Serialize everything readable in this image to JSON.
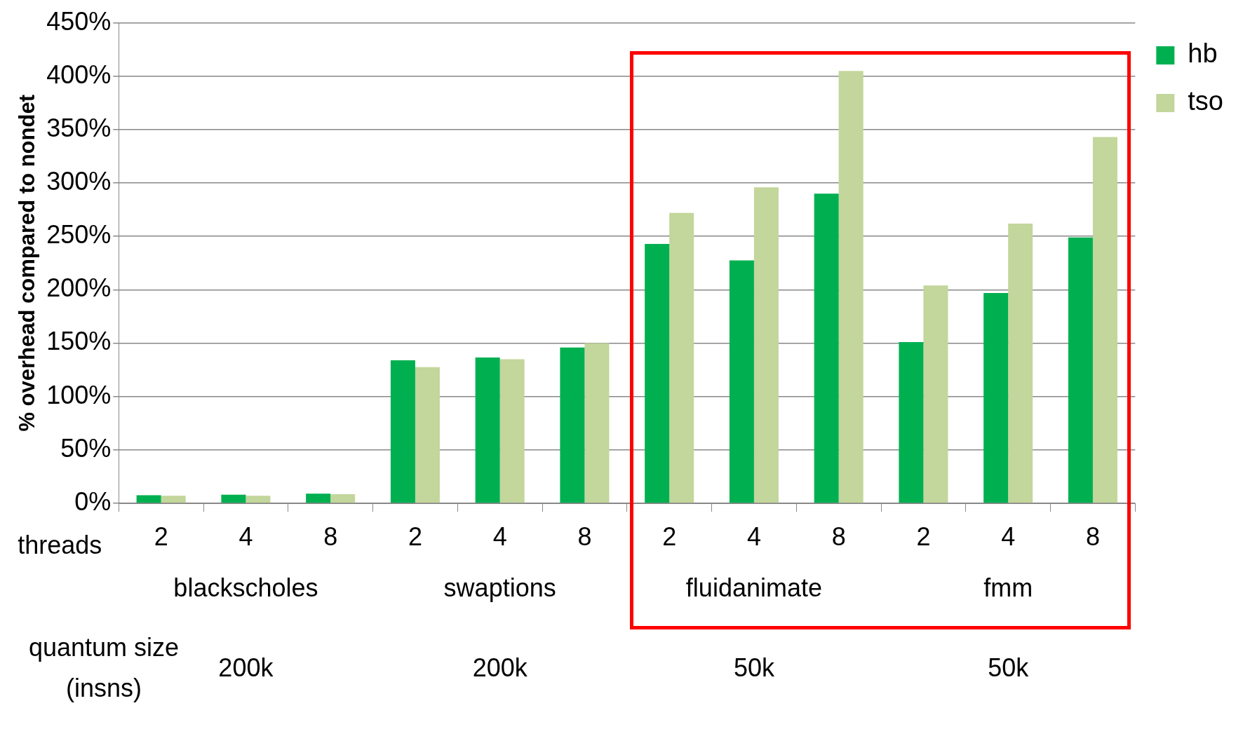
{
  "chart_data": {
    "type": "bar",
    "ylabel": "% overhead compared to nondet",
    "xlabel": "threads",
    "categories": [
      "2",
      "4",
      "8",
      "2",
      "4",
      "8",
      "2",
      "4",
      "8",
      "2",
      "4",
      "8"
    ],
    "series": [
      {
        "name": "hb",
        "color": "#00b050",
        "values": [
          7.5,
          8,
          9,
          134,
          136.5,
          146,
          243,
          227.5,
          290,
          151,
          197,
          249
        ]
      },
      {
        "name": "tso",
        "color": "#c3d69b",
        "values": [
          7,
          7,
          8.5,
          127.5,
          135,
          150,
          272,
          296,
          405,
          204,
          262,
          343
        ]
      }
    ],
    "ylim": [
      0,
      450
    ],
    "yticks": [
      {
        "value": 0,
        "label": "0%"
      },
      {
        "value": 50,
        "label": "50%"
      },
      {
        "value": 100,
        "label": "100%"
      },
      {
        "value": 150,
        "label": "150%"
      },
      {
        "value": 200,
        "label": "200%"
      },
      {
        "value": 250,
        "label": "250%"
      },
      {
        "value": 300,
        "label": "300%"
      },
      {
        "value": 350,
        "label": "350%"
      },
      {
        "value": 400,
        "label": "400%"
      },
      {
        "value": 450,
        "label": "450%"
      }
    ],
    "grid": "y",
    "legend": "right",
    "annotations": [
      "blackscholes",
      "swaptions",
      "fluidanimate",
      "fmm",
      "quantum size (insns)",
      "200k",
      "200k",
      "50k",
      "50k"
    ]
  }
}
